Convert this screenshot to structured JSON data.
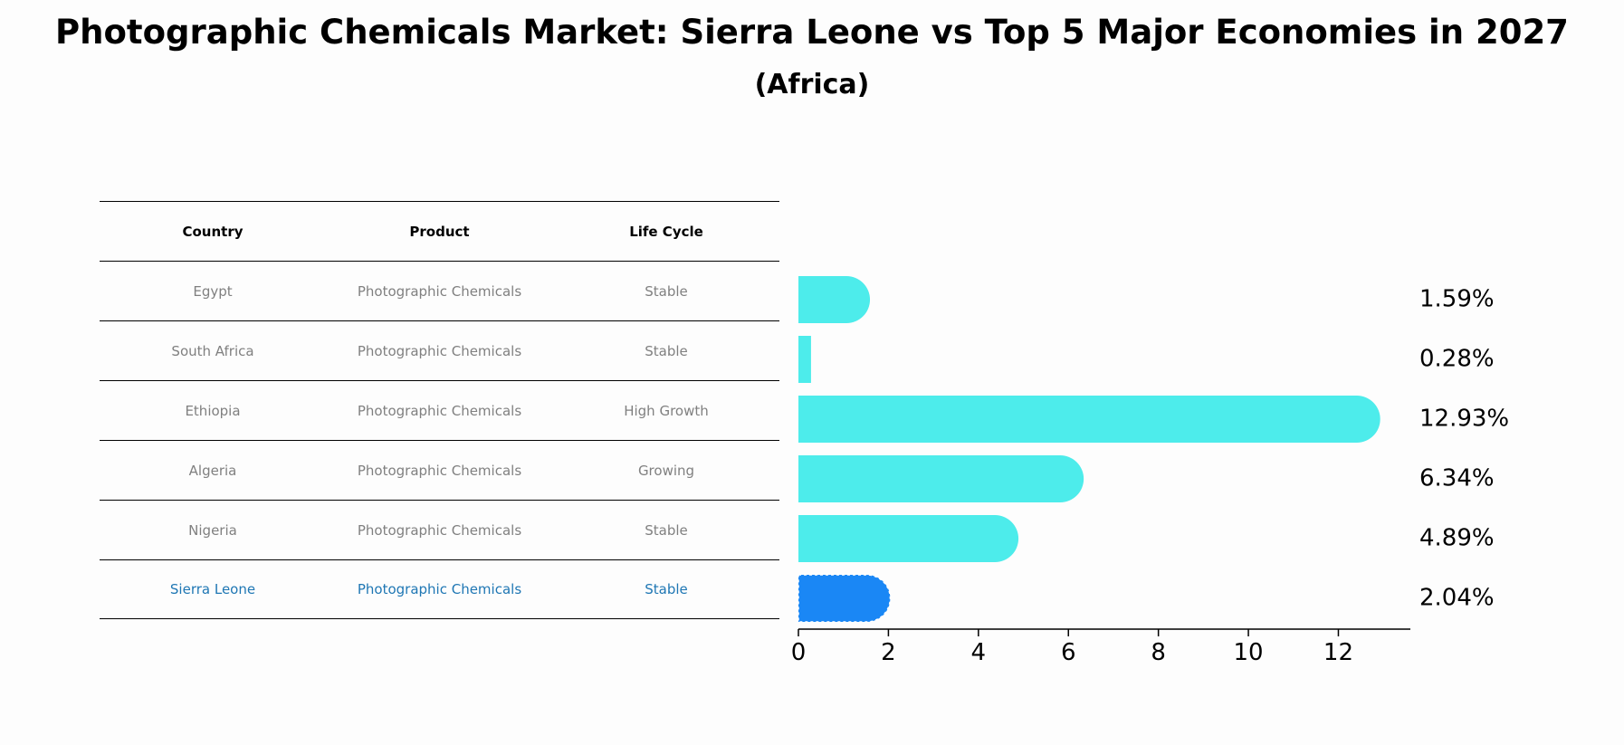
{
  "title": "Photographic Chemicals Market: Sierra Leone vs Top 5 Major Economies in 2027",
  "subtitle": "(Africa)",
  "table": {
    "headers": [
      "Country",
      "Product",
      "Life Cycle"
    ],
    "rows": [
      {
        "country": "Egypt",
        "product": "Photographic Chemicals",
        "life_cycle": "Stable"
      },
      {
        "country": "South Africa",
        "product": "Photographic Chemicals",
        "life_cycle": "Stable"
      },
      {
        "country": "Ethiopia",
        "product": "Photographic Chemicals",
        "life_cycle": "High Growth"
      },
      {
        "country": "Algeria",
        "product": "Photographic Chemicals",
        "life_cycle": "Growing"
      },
      {
        "country": "Nigeria",
        "product": "Photographic Chemicals",
        "life_cycle": "Stable"
      },
      {
        "country": "Sierra Leone",
        "product": "Photographic Chemicals",
        "life_cycle": "Stable"
      }
    ],
    "highlight_color": "#1f77b4"
  },
  "chart_data": {
    "type": "bar",
    "orientation": "horizontal",
    "categories": [
      "Egypt",
      "South Africa",
      "Ethiopia",
      "Algeria",
      "Nigeria",
      "Sierra Leone"
    ],
    "values": [
      1.59,
      0.28,
      12.93,
      6.34,
      4.89,
      2.04
    ],
    "labels": [
      "1.59%",
      "0.28%",
      "12.93%",
      "6.34%",
      "4.89%",
      "2.04%"
    ],
    "highlight": "Sierra Leone",
    "xlim": [
      0,
      13.6
    ],
    "xticks": [
      0,
      2,
      4,
      6,
      8,
      10,
      12
    ],
    "colors": {
      "default": "#4deceb",
      "highlight": "#1a87f5"
    },
    "xlabel": "",
    "ylabel": ""
  }
}
